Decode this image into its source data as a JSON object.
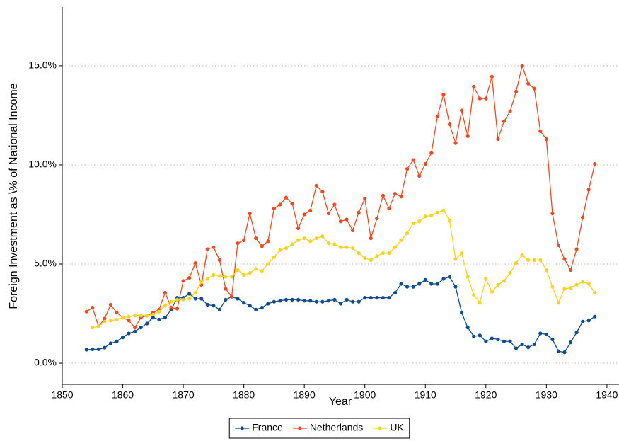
{
  "chart_data": {
    "type": "line",
    "x_label": "Year",
    "y_label": "Foreign Investment as \\% of National Income",
    "x": [
      1854,
      1855,
      1856,
      1857,
      1858,
      1859,
      1860,
      1861,
      1862,
      1863,
      1864,
      1865,
      1866,
      1867,
      1868,
      1869,
      1870,
      1871,
      1872,
      1873,
      1874,
      1875,
      1876,
      1877,
      1878,
      1879,
      1880,
      1881,
      1882,
      1883,
      1884,
      1885,
      1886,
      1887,
      1888,
      1889,
      1890,
      1891,
      1892,
      1893,
      1894,
      1895,
      1896,
      1897,
      1898,
      1899,
      1900,
      1901,
      1902,
      1903,
      1904,
      1905,
      1906,
      1907,
      1908,
      1909,
      1910,
      1911,
      1912,
      1913,
      1914,
      1915,
      1916,
      1917,
      1918,
      1919,
      1920,
      1921,
      1922,
      1923,
      1924,
      1925,
      1926,
      1927,
      1928,
      1929,
      1930,
      1931,
      1932,
      1933,
      1934,
      1935,
      1936,
      1937,
      1938
    ],
    "series": [
      {
        "name": "France",
        "color": "#124c8c",
        "values": [
          0.68,
          0.7,
          0.7,
          0.78,
          1.0,
          1.1,
          1.3,
          1.5,
          1.6,
          1.8,
          2.0,
          2.3,
          2.2,
          2.3,
          2.7,
          3.3,
          3.3,
          3.5,
          3.25,
          3.25,
          2.95,
          2.9,
          2.7,
          3.2,
          3.35,
          3.25,
          3.05,
          2.9,
          2.7,
          2.8,
          3.0,
          3.1,
          3.15,
          3.2,
          3.2,
          3.2,
          3.15,
          3.15,
          3.1,
          3.1,
          3.15,
          3.2,
          3.0,
          3.2,
          3.1,
          3.1,
          3.3,
          3.3,
          3.3,
          3.3,
          3.3,
          3.55,
          4.0,
          3.85,
          3.85,
          4.0,
          4.2,
          4.0,
          4.0,
          4.25,
          4.35,
          3.85,
          2.55,
          1.8,
          1.35,
          1.4,
          1.1,
          1.25,
          1.2,
          1.1,
          1.1,
          0.75,
          0.95,
          0.8,
          0.95,
          1.5,
          1.45,
          1.2,
          0.6,
          0.55,
          1.05,
          1.55,
          2.1,
          2.15,
          2.35
        ]
      },
      {
        "name": "Netherlands",
        "color": "#ee4a22",
        "values": [
          2.6,
          2.8,
          1.85,
          2.25,
          2.95,
          2.55,
          2.3,
          2.15,
          1.8,
          2.3,
          2.4,
          2.55,
          2.7,
          3.55,
          2.8,
          2.75,
          4.15,
          4.3,
          5.05,
          3.95,
          5.75,
          5.85,
          5.2,
          3.75,
          3.35,
          6.05,
          6.2,
          7.55,
          6.3,
          5.9,
          6.15,
          7.8,
          8.0,
          8.35,
          8.05,
          6.8,
          7.5,
          7.7,
          8.95,
          8.65,
          7.55,
          8.0,
          7.15,
          7.25,
          6.7,
          7.6,
          8.3,
          6.3,
          7.3,
          8.45,
          7.8,
          8.55,
          8.4,
          9.8,
          10.25,
          9.45,
          10.05,
          10.6,
          12.45,
          13.55,
          12.05,
          11.1,
          12.75,
          11.45,
          13.95,
          13.35,
          13.35,
          14.45,
          11.3,
          12.2,
          12.7,
          13.7,
          15.0,
          14.1,
          13.85,
          11.7,
          11.3,
          7.55,
          5.95,
          5.25,
          4.7,
          5.75,
          7.35,
          8.75,
          10.05
        ]
      },
      {
        "name": "UK",
        "color": "#f5d426",
        "values": [
          null,
          1.8,
          1.85,
          2.1,
          2.15,
          2.2,
          2.3,
          2.35,
          2.4,
          2.4,
          2.4,
          2.45,
          2.6,
          2.9,
          3.1,
          3.2,
          3.2,
          3.25,
          3.55,
          4.1,
          4.25,
          4.45,
          4.4,
          4.35,
          4.35,
          4.7,
          4.45,
          4.55,
          4.75,
          4.65,
          5.0,
          5.35,
          5.7,
          5.8,
          6.0,
          6.2,
          6.3,
          6.15,
          6.3,
          6.4,
          6.05,
          6.0,
          5.85,
          5.85,
          5.8,
          5.55,
          5.3,
          5.2,
          5.4,
          5.55,
          5.55,
          5.85,
          6.2,
          6.55,
          7.05,
          7.15,
          7.4,
          7.45,
          7.6,
          7.7,
          7.2,
          5.25,
          5.55,
          4.35,
          3.45,
          3.05,
          4.25,
          3.6,
          3.95,
          4.15,
          4.55,
          5.05,
          5.45,
          5.2,
          5.2,
          5.2,
          4.7,
          3.85,
          3.05,
          3.75,
          3.8,
          3.95,
          4.1,
          4.0,
          3.55
        ]
      }
    ],
    "xlim": [
      1850,
      1942
    ],
    "ylim": [
      -1.07,
      17.96
    ],
    "xticks": [
      1850,
      1860,
      1870,
      1880,
      1890,
      1900,
      1910,
      1920,
      1930,
      1940
    ],
    "yticks": [
      {
        "value": 0,
        "label": "0.0%"
      },
      {
        "value": 5,
        "label": "5.0%"
      },
      {
        "value": 10,
        "label": "10.0%"
      },
      {
        "value": 15,
        "label": "15.0%"
      }
    ],
    "grid": true,
    "legend": "bottom"
  }
}
